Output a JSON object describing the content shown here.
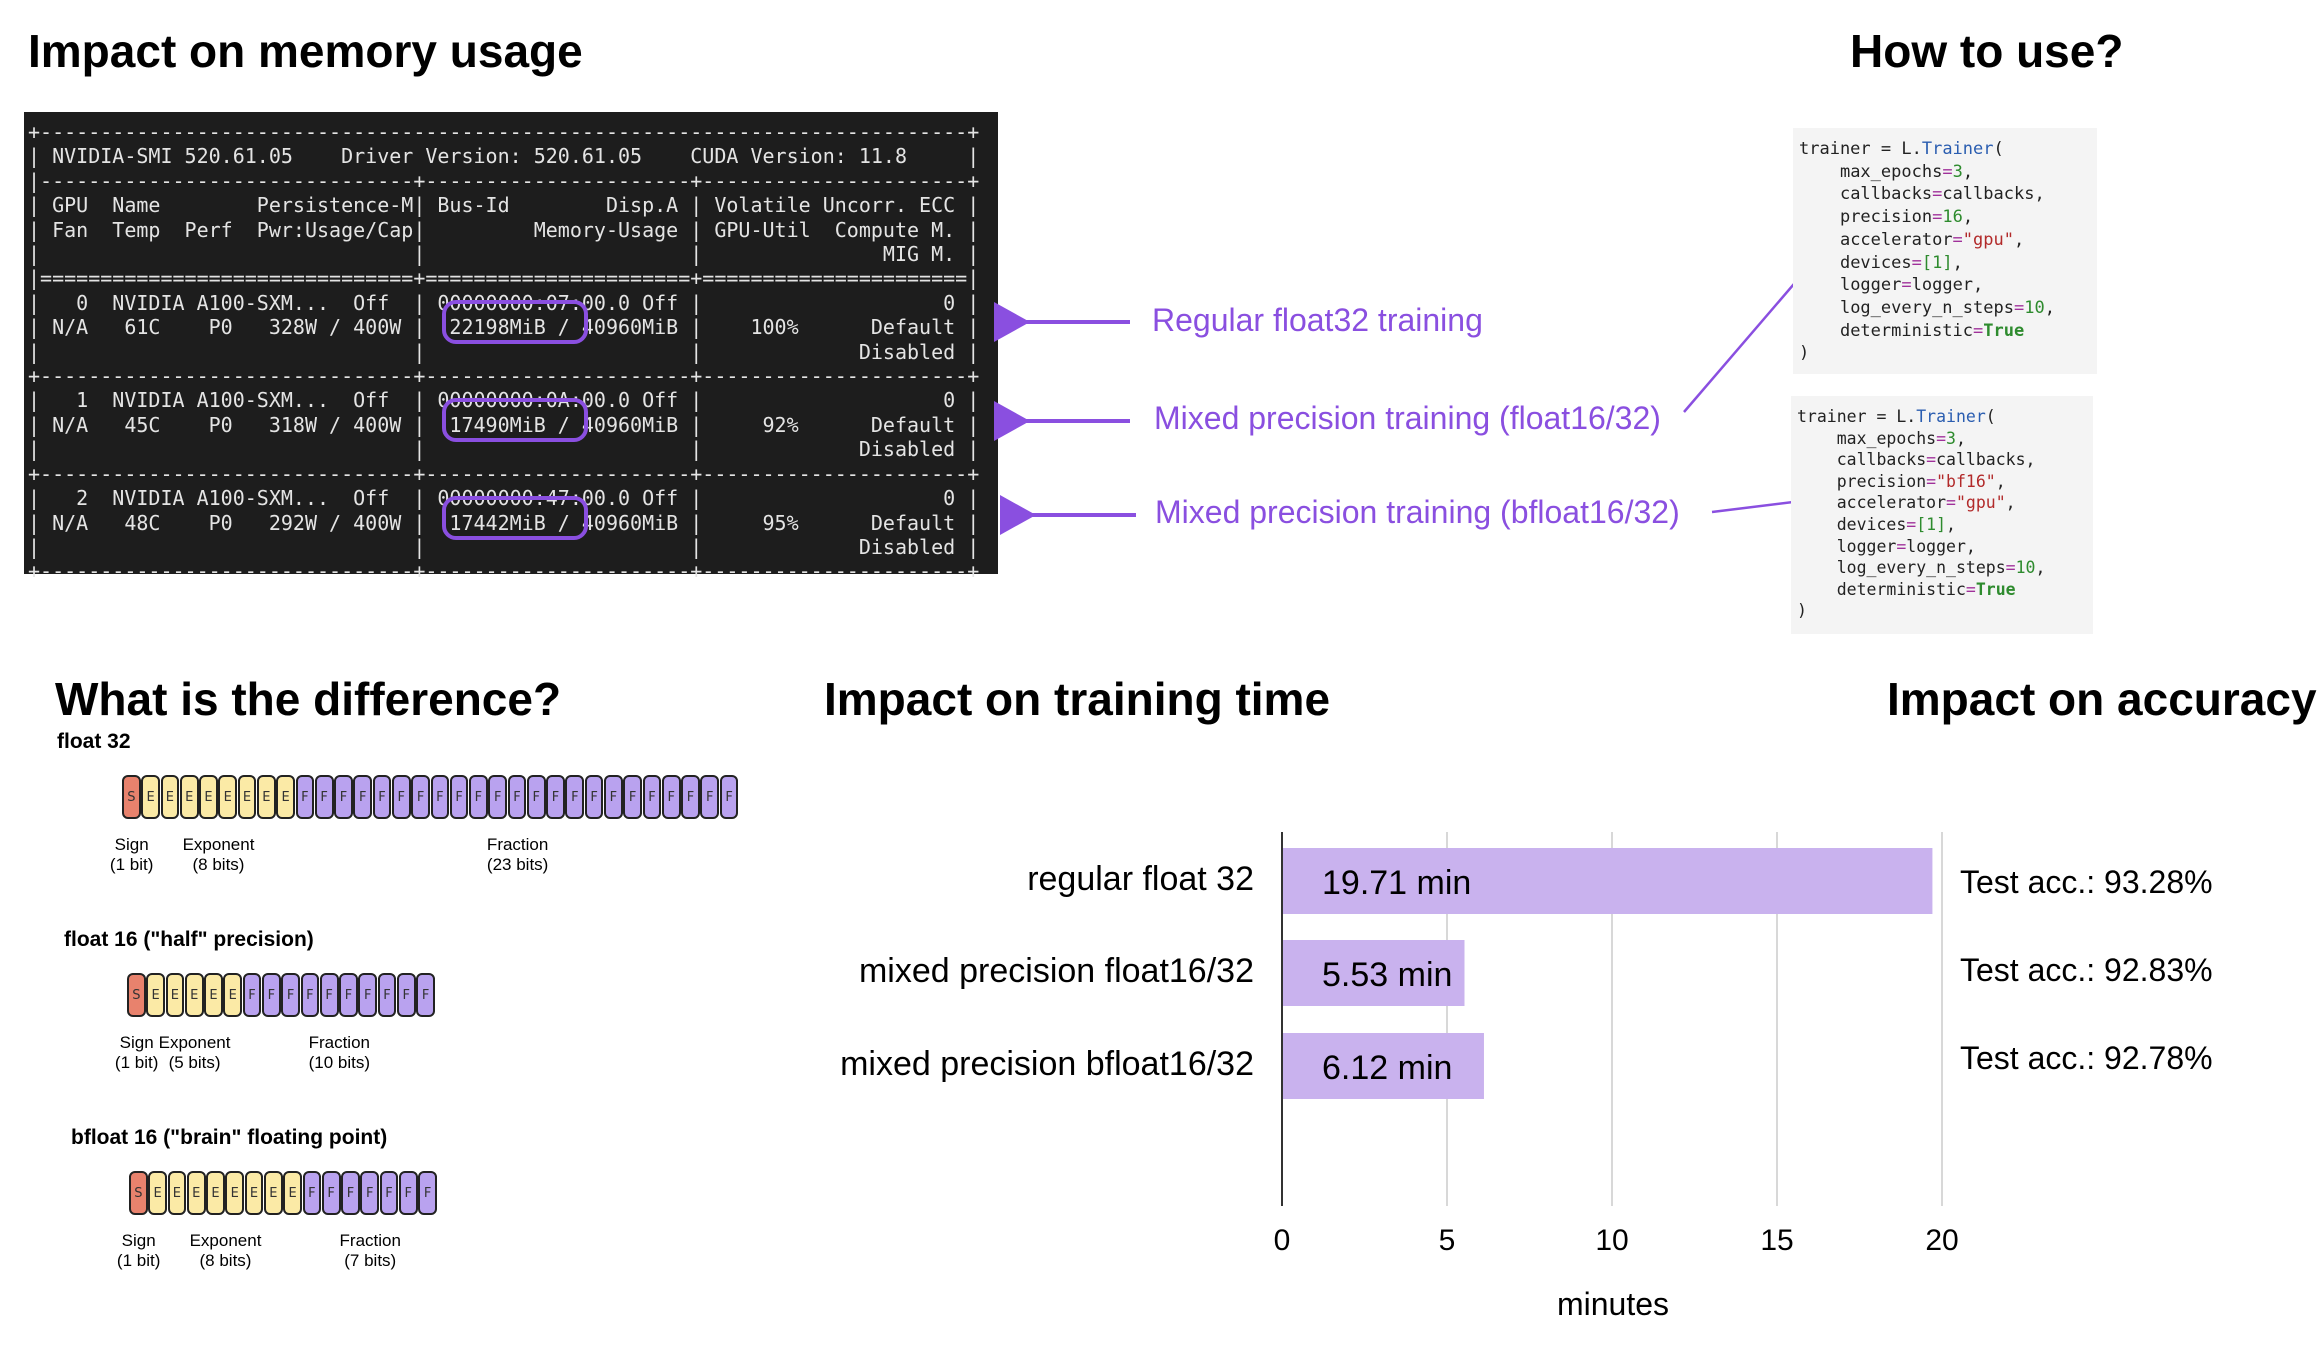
{
  "headings": {
    "memory": "Impact on memory usage",
    "howto": "How to use?",
    "difference": "What is the difference?",
    "time": "Impact on training time",
    "accuracy": "Impact on accuracy"
  },
  "terminal_text": [
    "+-----------------------------------------------------------------------------+",
    "| NVIDIA-SMI 520.61.05    Driver Version: 520.61.05    CUDA Version: 11.8     |",
    "|-------------------------------+----------------------+----------------------+",
    "| GPU  Name        Persistence-M| Bus-Id        Disp.A | Volatile Uncorr. ECC |",
    "| Fan  Temp  Perf  Pwr:Usage/Cap|         Memory-Usage | GPU-Util  Compute M. |",
    "|                               |                      |               MIG M. |",
    "|===============================+======================+======================|",
    "|   0  NVIDIA A100-SXM...  Off  | 00000000:07:00.0 Off |                    0 |",
    "| N/A   61C    P0   328W / 400W |  22198MiB / 40960MiB |    100%      Default |",
    "|                               |                      |             Disabled |",
    "+-------------------------------+----------------------+----------------------+",
    "|   1  NVIDIA A100-SXM...  Off  | 00000000:0A:00.0 Off |                    0 |",
    "| N/A   45C    P0   318W / 400W |  17490MiB / 40960MiB |     92%      Default |",
    "|                               |                      |             Disabled |",
    "+-------------------------------+----------------------+----------------------+",
    "|   2  NVIDIA A100-SXM...  Off  | 00000000:47:00.0 Off |                    0 |",
    "| N/A   48C    P0   292W / 400W |  17442MiB / 40960MiB |     95%      Default |",
    "|                               |                      |             Disabled |",
    "+-------------------------------+----------------------+----------------------+"
  ],
  "memory_annotations": [
    "Regular float32 training",
    "Mixed precision training (float16/32)",
    "Mixed precision training (bfloat16/32)"
  ],
  "code_blocks": [
    {
      "open": "trainer = ",
      "mod": "L.",
      "cls": "Trainer",
      "paren": "(",
      "precision_value": "16",
      "close": ")"
    },
    {
      "open": "trainer = ",
      "mod": "L.",
      "cls": "Trainer",
      "paren": "(",
      "precision_value": "\"bf16\"",
      "close": ")"
    }
  ],
  "code_args": {
    "max_epochs": "max_epochs",
    "max_epochs_val": "3",
    "callbacks": "callbacks",
    "callbacks_val": "callbacks",
    "precision": "precision",
    "accelerator": "accelerator",
    "accelerator_val": "\"gpu\"",
    "devices": "devices",
    "devices_val": "[1]",
    "logger": "logger",
    "logger_val": "logger",
    "log_every_n_steps": "log_every_n_steps",
    "log_every_n_steps_val": "10",
    "deterministic": "deterministic",
    "deterministic_val": "True"
  },
  "formats": [
    {
      "title": "float 32",
      "sign": 1,
      "exponent": 8,
      "fraction": 23,
      "labels": {
        "sign": "Sign",
        "sign_bits": "(1 bit)",
        "exp": "Exponent",
        "exp_bits": "(8 bits)",
        "frac": "Fraction",
        "frac_bits": "(23 bits)"
      }
    },
    {
      "title": "float 16 (\"half\" precision)",
      "sign": 1,
      "exponent": 5,
      "fraction": 10,
      "labels": {
        "sign": "Sign",
        "sign_bits": "(1 bit)",
        "exp": "Exponent",
        "exp_bits": "(5 bits)",
        "frac": "Fraction",
        "frac_bits": "(10 bits)"
      }
    },
    {
      "title": "bfloat 16 (\"brain\" floating point)",
      "sign": 1,
      "exponent": 8,
      "fraction": 7,
      "labels": {
        "sign": "Sign",
        "sign_bits": "(1 bit)",
        "exp": "Exponent",
        "exp_bits": "(8 bits)",
        "frac": "Fraction",
        "frac_bits": "(7 bits)"
      }
    }
  ],
  "bit_letters": {
    "sign": "S",
    "exponent": "E",
    "fraction": "F"
  },
  "colors": {
    "accent": "#8a4fe0",
    "bar": "#c9b2ee",
    "sign": "#e8826d",
    "exponent": "#fbeaa6",
    "fraction": "#b9a2ef",
    "terminal_bg": "#1d1d1d"
  },
  "chart_data": {
    "type": "bar",
    "orientation": "horizontal",
    "title": "Impact on training time",
    "categories": [
      "regular float 32",
      "mixed precision float16/32",
      "mixed precision bfloat16/32"
    ],
    "values": [
      19.71,
      5.53,
      6.12
    ],
    "value_labels": [
      "19.71 min",
      "5.53 min",
      "6.12 min"
    ],
    "xlabel": "minutes",
    "xlim": [
      0,
      20
    ],
    "xticks": [
      "0",
      "5",
      "10",
      "15",
      "20"
    ],
    "grid": true
  },
  "accuracy": [
    "Test acc.: 93.28%",
    "Test acc.: 92.83%",
    "Test acc.: 92.78%"
  ]
}
